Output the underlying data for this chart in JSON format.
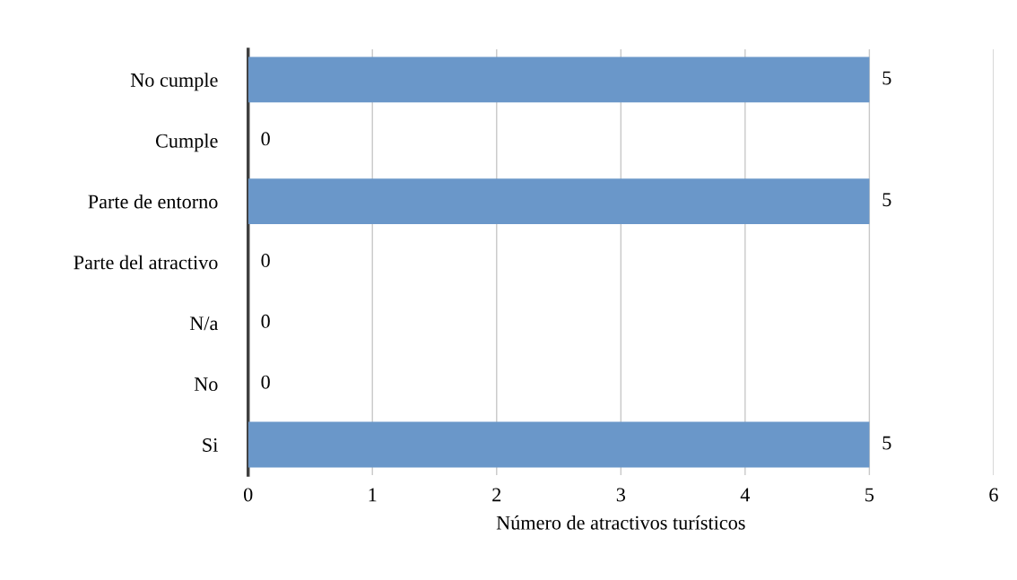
{
  "chart_data": {
    "type": "bar",
    "orientation": "horizontal",
    "xlabel": "Número de atractivos turísticos",
    "categories": [
      "No cumple",
      "Cumple",
      "Parte de entorno",
      "Parte del atractivo",
      "N/a",
      "No",
      "Si"
    ],
    "values": [
      5,
      0,
      5,
      0,
      0,
      0,
      5
    ],
    "color": "#6a97c9",
    "xlim": [
      0,
      6
    ],
    "xticks": [
      0,
      1,
      2,
      3,
      4,
      5,
      6
    ],
    "grid": "x",
    "data_labels": true
  }
}
